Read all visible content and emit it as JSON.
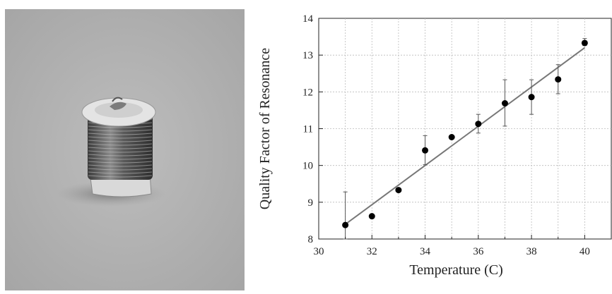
{
  "chart_data": {
    "type": "scatter",
    "xlabel": "Temperature (C)",
    "ylabel": "Quality Factor of Resonance",
    "xlim": [
      30,
      41
    ],
    "ylim": [
      8,
      14
    ],
    "xticks": [
      30,
      32,
      34,
      36,
      38,
      40
    ],
    "yticks": [
      8,
      9,
      10,
      11,
      12,
      13,
      14
    ],
    "grid": true,
    "series": [
      {
        "x": [
          31,
          32,
          33,
          34,
          35,
          36,
          37,
          38,
          39,
          40
        ],
        "y": [
          8.38,
          8.62,
          9.33,
          10.41,
          10.77,
          11.13,
          11.69,
          11.86,
          12.34,
          13.33
        ],
        "error_low": [
          8.0,
          8.62,
          9.33,
          10.02,
          10.77,
          10.88,
          11.07,
          11.39,
          11.95,
          13.26
        ],
        "error_high": [
          9.28,
          8.62,
          9.33,
          10.81,
          10.77,
          11.39,
          12.33,
          12.33,
          12.74,
          13.45
        ]
      }
    ],
    "fit_line": {
      "x": [
        31,
        40
      ],
      "y": [
        8.4,
        13.2
      ]
    },
    "colors": {
      "points": "#000000",
      "fit": "#777777",
      "grid": "#bbbbbb"
    }
  }
}
